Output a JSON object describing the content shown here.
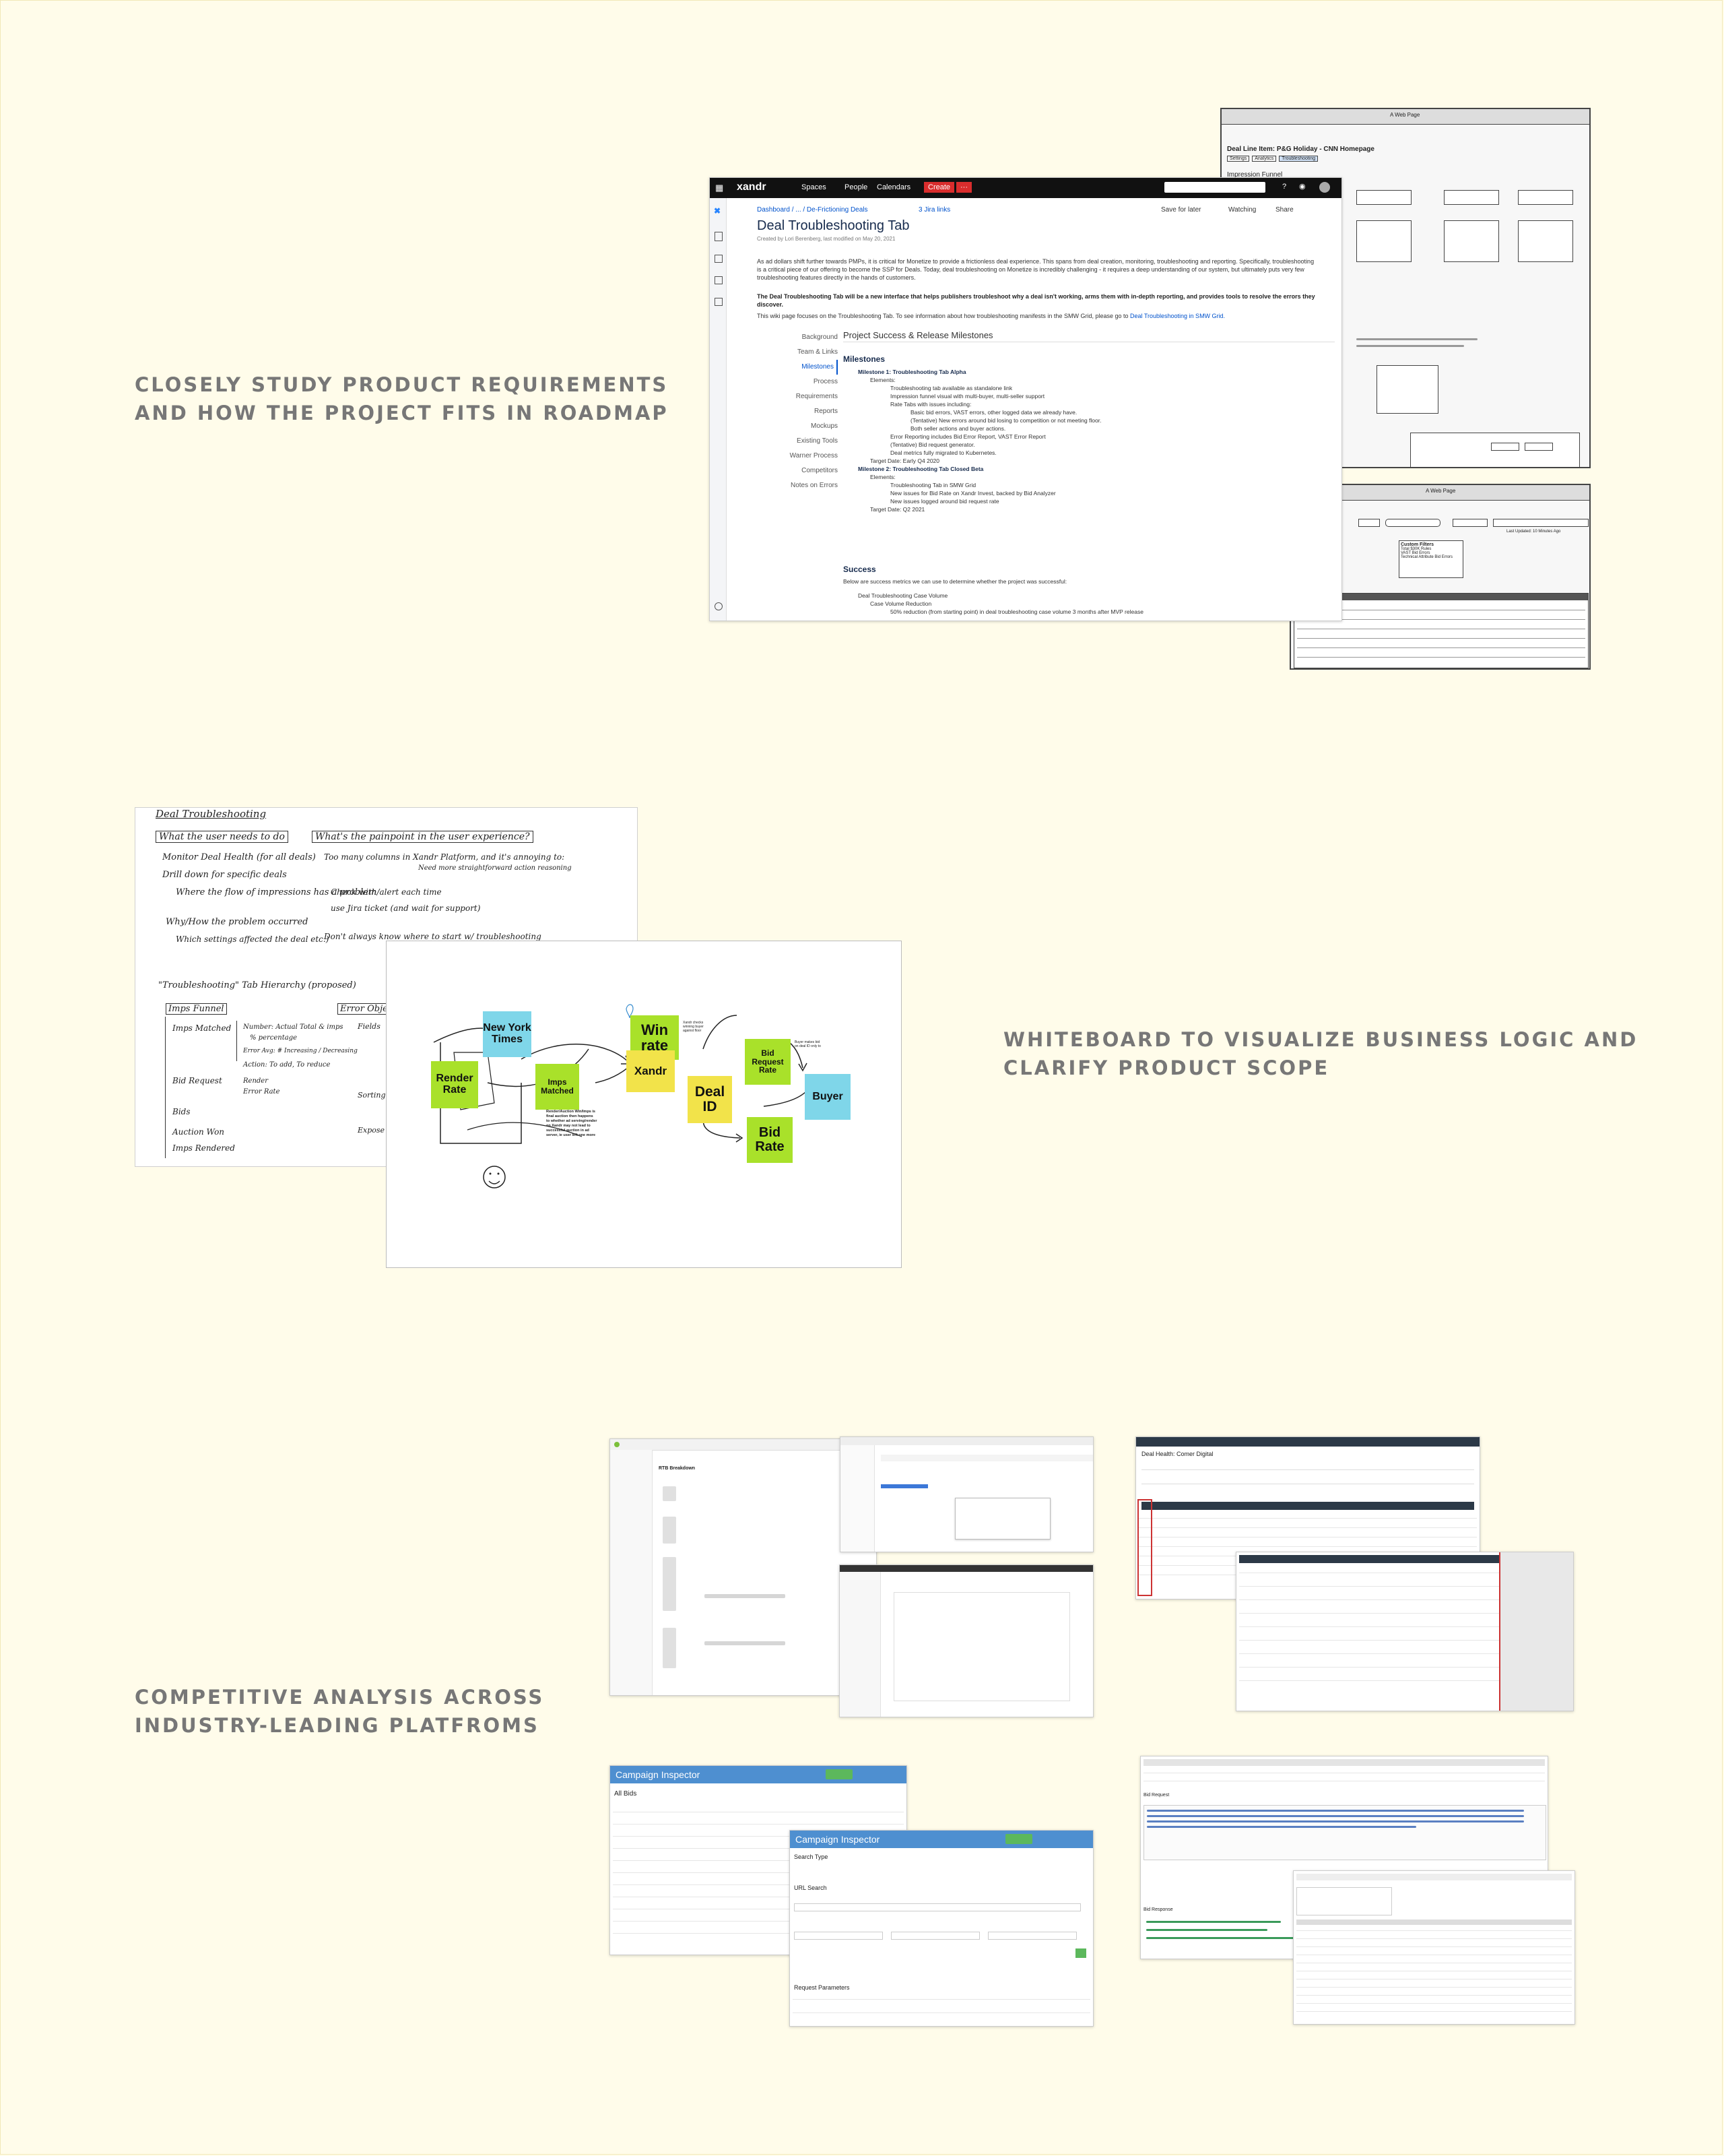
{
  "captions": {
    "roadmap": [
      "CLOSELY STUDY PRODUCT REQUIREMENTS",
      "AND HOW THE PROJECT FITS IN ROADMAP"
    ],
    "whiteboard": [
      "WHITEBOARD TO VISUALIZE BUSINESS LOGIC AND",
      "CLARIFY PRODUCT SCOPE"
    ],
    "competitive": [
      "COMPETITIVE ANALYSIS ACROSS",
      "INDUSTRY-LEADING PLATFROMS"
    ]
  },
  "wiki": {
    "brand": "xandr",
    "nav": [
      "Spaces",
      "People",
      "Calendars"
    ],
    "create": "Create",
    "breadcrumb": "Dashboard / ... / De-Frictioning Deals",
    "jira": "3 Jira links",
    "save_later": "Save for later",
    "watching": "Watching",
    "share": "Share",
    "title": "Deal Troubleshooting Tab",
    "byline": "Created by Lori Berenberg, last modified on May 20, 2021",
    "intro": "As ad dollars shift further towards PMPs, it is critical for Monetize to provide a frictionless deal experience. This spans from deal creation, monitoring, troubleshooting and reporting. Specifically, troubleshooting is a critical piece of our offering to become the SSP for Deals. Today, deal troubleshooting on Monetize is incredibly challenging - it requires a deep understanding of our system, but ultimately puts very few troubleshooting features directly in the hands of customers.",
    "bold_intro": "The Deal Troubleshooting Tab will be a new interface that helps publishers troubleshoot why a deal isn't working, arms them with in-depth reporting, and provides tools to resolve the errors they discover.",
    "focus": "This wiki page focuses on the Troubleshooting Tab. To see information about how troubleshooting manifests in the SMW Grid, please go to",
    "focus_link": "Deal Troubleshooting in SMW Grid.",
    "side_nav": [
      "Background",
      "Team & Links",
      "Milestones",
      "Process",
      "Requirements",
      "Reports",
      "Mockups",
      "Existing Tools",
      "Warner Process",
      "Competitors",
      "Notes on Errors"
    ],
    "section_heading": "Project Success & Release Milestones",
    "milestones_heading": "Milestones",
    "milestones": [
      "Milestone 1: Troubleshooting Tab Alpha",
      "Elements:",
      "Troubleshooting tab available as standalone link",
      "Impression funnel visual with multi-buyer, multi-seller support",
      "Rate Tabs with issues including:",
      "Basic bid errors, VAST errors, other logged data we already have.",
      "(Tentative) New errors around bid losing to competition or not meeting floor.",
      "Both seller actions and buyer actions.",
      "Error Reporting includes Bid Error Report, VAST Error Report",
      "(Tentative) Bid request generator.",
      "Deal metrics fully migrated to Kubernetes.",
      "Target Date: Early Q4 2020",
      "Milestone 2: Troubleshooting Tab Closed Beta",
      "Elements:",
      "Troubleshooting Tab in SMW Grid",
      "New issues for Bid Rate on Xandr Invest, backed by Bid Analyzer",
      "New issues logged around bid request rate",
      "Target Date: Q2 2021"
    ],
    "success_heading": "Success",
    "success_intro": "Below are success metrics we can use to determine whether the project was successful:",
    "success_items": [
      "Deal Troubleshooting Case Volume",
      "Case Volume Reduction",
      "50% reduction (from starting point) in deal troubleshooting case volume 3 months after MVP release"
    ]
  },
  "wireframe_top": {
    "window_title": "A Web Page",
    "line_item": "Deal Line Item: P&G Holiday - CNN Homepage",
    "tabs": [
      "Settings",
      "Analytics",
      "Troubleshooting"
    ],
    "funnel": "Impression Funnel"
  },
  "wireframe_bottom": {
    "window_title": "A Web Page",
    "custom_filters": "Custom Filters",
    "filters": [
      "Total $30K Rules",
      "VAST Bid Errors",
      "Technical Attribute Bid Errors"
    ],
    "last_updated": "Last Updated: 10 Minutes Ago"
  },
  "notebook": {
    "title": "Deal Troubleshooting",
    "q1": "What the user needs to do",
    "q2": "What's the painpoint in the user experience?",
    "bullets_left": [
      "Monitor Deal Health (for all deals)",
      "Drill down for specific deals",
      "Where the flow of impressions has a problem",
      "Why/How the problem occurred",
      "Which settings affected the deal etc.)"
    ],
    "bullets_right": [
      "Too many columns in Xandr Platform, and it's annoying to:",
      "Need more straightforward action reasoning",
      "Check with/alert each time",
      "use Jira ticket (and wait for support)",
      "Don't always know where to start w/ troubleshooting"
    ],
    "tab_heading": "\"Troubleshooting\" Tab Hierarchy (proposed)",
    "funnel_label": "Imps Funnel",
    "error_label": "Error Objects",
    "funnel_items": [
      "Imps Matched",
      "Bid Request",
      "Bids",
      "Auction Won",
      "Imps Rendered"
    ],
    "mid_items": [
      "Number: Actual Total & imps",
      "% percentage",
      "Error Avg: # Increasing / Decreasing",
      "Action: To add, To reduce",
      "Render",
      "Error Rate"
    ],
    "right_items": [
      "Fields",
      "Sorting",
      "Expose"
    ]
  },
  "whiteboard": {
    "notes": [
      "New York Times",
      "Render Rate",
      "Imps Matched",
      "Win rate",
      "Xandr",
      "Deal ID",
      "Bid Request Rate",
      "Buyer",
      "Bid Rate"
    ],
    "annotation_win": "Xandr checks winning buyer against floor",
    "annotation_buyer": "Buyer makes bid on deal ID only to",
    "annotation_render": "Render/Auction Win/Imps is final auction then happens to whether ad serving/render on Xandr may not lead to successful auction in ad server, ie user left one more"
  },
  "competitors": {
    "campaign_inspector": "Campaign Inspector",
    "all_bids": "All Bids",
    "search_type": "Search Type",
    "url_search": "URL Search",
    "request_params": "Request Parameters",
    "rtb_breakdown": "RTB Breakdown",
    "health_title": "Deal Health: Comer Digital",
    "bid_request_label": "Bid Request",
    "bid_response_label": "Bid Response"
  },
  "colors": {
    "background": "#fffcea",
    "caption": "#777777",
    "sticky_cyan": "#7fd6e9",
    "sticky_green": "#a9e12a",
    "sticky_yellow": "#f2e34a",
    "xandr_top": "#111111",
    "create_red": "#d92d2d",
    "inspector_blue": "#4e8fd0"
  }
}
